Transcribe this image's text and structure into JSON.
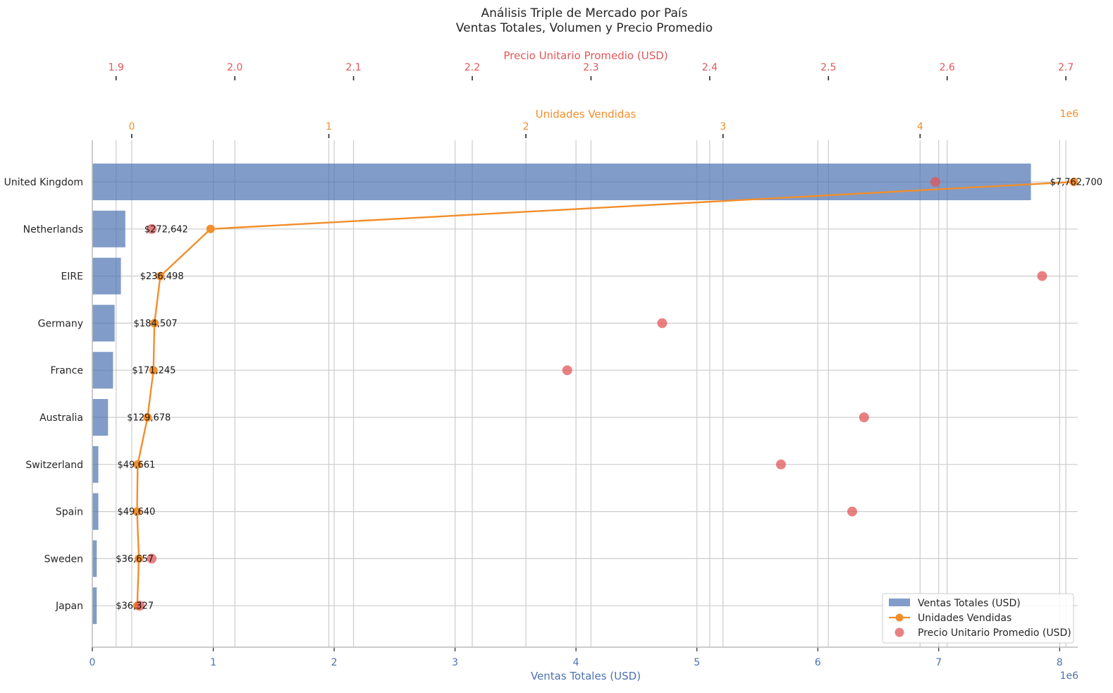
{
  "chart_data": {
    "type": "bar",
    "orientation": "horizontal",
    "title_lines": [
      "Análisis Triple de Mercado por País",
      "Ventas Totales, Volumen y Precio Promedio"
    ],
    "categories": [
      "United Kingdom",
      "Netherlands",
      "EIRE",
      "Germany",
      "France",
      "Australia",
      "Switzerland",
      "Spain",
      "Sweden",
      "Japan"
    ],
    "series": [
      {
        "name": "Ventas Totales (USD)",
        "kind": "bar",
        "axis": "bottom",
        "color": "#4c72b0",
        "values": [
          7762700,
          272642,
          236498,
          184507,
          171245,
          129678,
          49661,
          49640,
          36657,
          36327
        ],
        "labels": [
          "$7,762,700",
          "$272,642",
          "$236,498",
          "$184,507",
          "$171,245",
          "$129,678",
          "$49,661",
          "$49,640",
          "$36,657",
          "$36,327"
        ]
      },
      {
        "name": "Unidades Vendidas",
        "kind": "line",
        "axis": "top-inner",
        "color": "#f28e2b",
        "values": [
          4780000,
          400000,
          145000,
          115000,
          110000,
          80000,
          30000,
          27000,
          36000,
          28000
        ]
      },
      {
        "name": "Precio Unitario Promedio (USD)",
        "kind": "scatter",
        "axis": "top-outer",
        "color": "#e15759",
        "values": [
          2.59,
          1.93,
          2.68,
          2.36,
          2.28,
          2.53,
          2.46,
          2.52,
          1.93,
          1.92
        ]
      }
    ],
    "axes": {
      "bottom": {
        "label": "Ventas Totales (USD)",
        "lim": [
          0,
          8150000
        ],
        "ticks": [
          0,
          1,
          2,
          3,
          4,
          5,
          6,
          7,
          8
        ],
        "tick_scale": 1000000,
        "offset_text": "1e6"
      },
      "top_inner": {
        "label": "Unidades Vendidas",
        "lim": [
          -200000,
          4800000
        ],
        "ticks": [
          0,
          1,
          2,
          3,
          4
        ],
        "tick_scale": 1000000,
        "offset_text": "1e6"
      },
      "top_outer": {
        "label": "Precio Unitario Promedio (USD)",
        "lim": [
          1.88,
          2.71
        ],
        "ticks": [
          "1.9",
          "2.0",
          "2.1",
          "2.2",
          "2.3",
          "2.4",
          "2.5",
          "2.6",
          "2.7"
        ]
      }
    },
    "grid": true,
    "legend_position": "bottom-right"
  }
}
